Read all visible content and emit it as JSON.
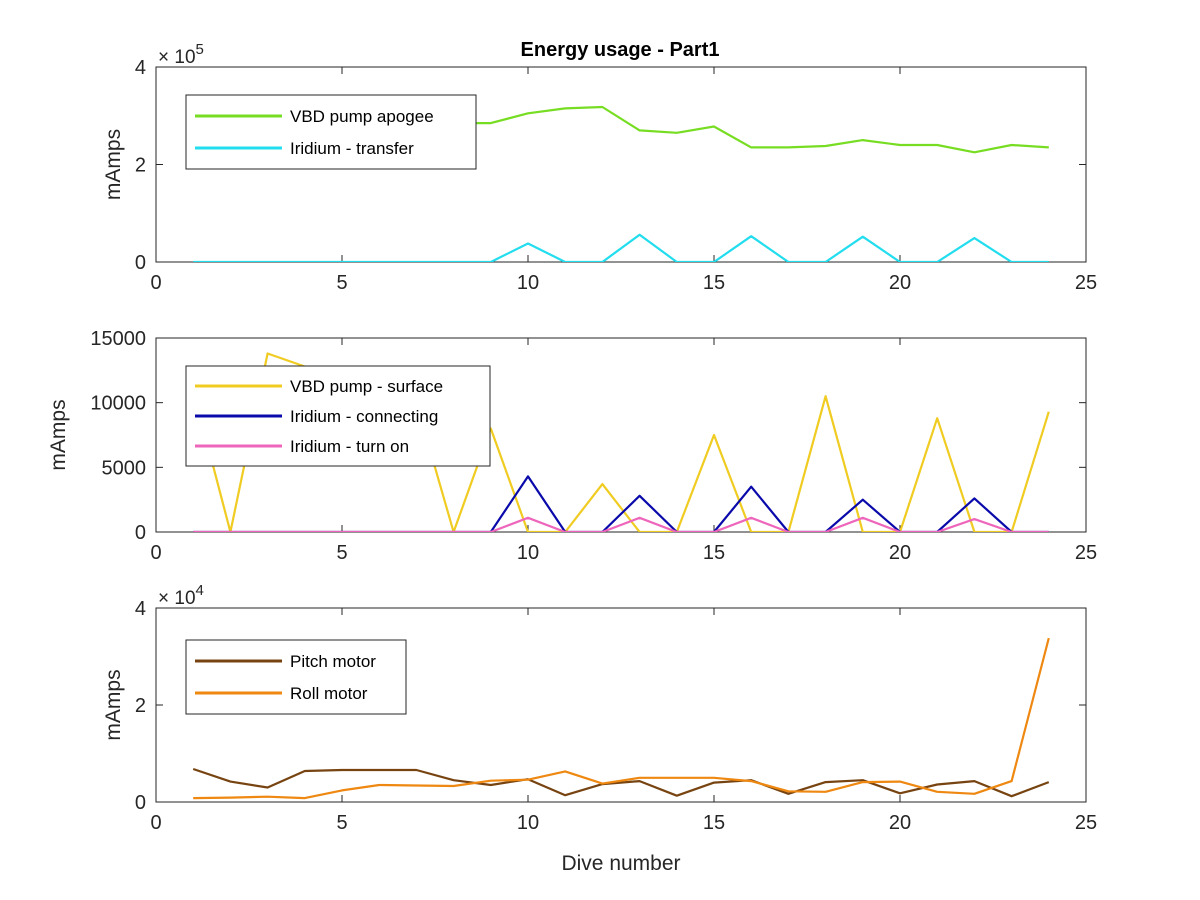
{
  "title": "Energy usage - Part1",
  "chart_data": [
    {
      "type": "line",
      "title": "Energy usage - Part1",
      "xlabel": "",
      "ylabel": "mAmps",
      "xlim": [
        0,
        25
      ],
      "ylim": [
        0,
        400000
      ],
      "xticks": [
        0,
        5,
        10,
        15,
        20,
        25
      ],
      "xtick_labels": [
        "0",
        "5",
        "10",
        "15",
        "20",
        "25"
      ],
      "yticks": [
        0,
        200000,
        400000
      ],
      "ytick_labels": [
        "0",
        "2",
        "4"
      ],
      "y_exponent_base": "× 10",
      "y_exponent_power": "5",
      "legend_position": "top-left",
      "grid": false,
      "series": [
        {
          "name": "VBD pump apogee",
          "color": "#77DD22",
          "x": [
            8,
            9,
            10,
            11,
            12,
            13,
            14,
            15,
            16,
            17,
            18,
            19,
            20,
            21,
            22,
            23,
            24
          ],
          "values": [
            285000,
            285000,
            305000,
            315000,
            318000,
            270000,
            265000,
            278000,
            235000,
            235000,
            238000,
            250000,
            240000,
            240000,
            225000,
            240000,
            235000
          ]
        },
        {
          "name": "Iridium - transfer",
          "color": "#22DDEE",
          "x": [
            1,
            2,
            3,
            4,
            5,
            6,
            7,
            8,
            9,
            10,
            11,
            12,
            13,
            14,
            15,
            16,
            17,
            18,
            19,
            20,
            21,
            22,
            23,
            24
          ],
          "values": [
            0,
            0,
            0,
            0,
            0,
            0,
            0,
            0,
            0,
            38000,
            0,
            0,
            56000,
            0,
            0,
            53000,
            0,
            0,
            52000,
            0,
            0,
            49000,
            0,
            0
          ]
        }
      ]
    },
    {
      "type": "line",
      "title": "",
      "xlabel": "",
      "ylabel": "mAmps",
      "xlim": [
        0,
        25
      ],
      "ylim": [
        0,
        15000
      ],
      "xticks": [
        0,
        5,
        10,
        15,
        20,
        25
      ],
      "xtick_labels": [
        "0",
        "5",
        "10",
        "15",
        "20",
        "25"
      ],
      "yticks": [
        0,
        5000,
        10000,
        15000
      ],
      "ytick_labels": [
        "0",
        "5000",
        "10000",
        "15000"
      ],
      "legend_position": "top-left",
      "grid": false,
      "series": [
        {
          "name": "VBD pump - surface",
          "color": "#F0CC22",
          "x": [
            1,
            2,
            3,
            4,
            5,
            6,
            7,
            8,
            9,
            10,
            11,
            12,
            13,
            14,
            15,
            16,
            17,
            18,
            19,
            20,
            21,
            22,
            23,
            24
          ],
          "values": [
            11000,
            0,
            13800,
            12800,
            12000,
            11000,
            10000,
            0,
            8000,
            0,
            0,
            3700,
            0,
            0,
            7500,
            0,
            0,
            10500,
            0,
            0,
            8800,
            0,
            0,
            9300
          ]
        },
        {
          "name": "Iridium - connecting",
          "color": "#0A0AAA",
          "x": [
            1,
            2,
            3,
            4,
            5,
            6,
            7,
            8,
            9,
            10,
            11,
            12,
            13,
            14,
            15,
            16,
            17,
            18,
            19,
            20,
            21,
            22,
            23,
            24
          ],
          "values": [
            0,
            0,
            0,
            0,
            0,
            0,
            0,
            0,
            0,
            4300,
            0,
            0,
            2800,
            0,
            0,
            3500,
            0,
            0,
            2500,
            0,
            0,
            2600,
            0,
            0
          ]
        },
        {
          "name": "Iridium - turn on",
          "color": "#EE66BB",
          "x": [
            1,
            2,
            3,
            4,
            5,
            6,
            7,
            8,
            9,
            10,
            11,
            12,
            13,
            14,
            15,
            16,
            17,
            18,
            19,
            20,
            21,
            22,
            23,
            24
          ],
          "values": [
            0,
            0,
            0,
            0,
            0,
            0,
            0,
            0,
            0,
            1100,
            0,
            0,
            1100,
            0,
            0,
            1100,
            0,
            0,
            1100,
            0,
            0,
            1000,
            0,
            0
          ]
        }
      ]
    },
    {
      "type": "line",
      "title": "",
      "xlabel": "Dive number",
      "ylabel": "mAmps",
      "xlim": [
        0,
        25
      ],
      "ylim": [
        0,
        40000
      ],
      "xticks": [
        0,
        5,
        10,
        15,
        20,
        25
      ],
      "xtick_labels": [
        "0",
        "5",
        "10",
        "15",
        "20",
        "25"
      ],
      "yticks": [
        0,
        20000,
        40000
      ],
      "ytick_labels": [
        "0",
        "2",
        "4"
      ],
      "y_exponent_base": "× 10",
      "y_exponent_power": "4",
      "legend_position": "top-left",
      "grid": false,
      "series": [
        {
          "name": "Pitch motor",
          "color": "#774411",
          "x": [
            1,
            2,
            3,
            4,
            5,
            6,
            7,
            8,
            9,
            10,
            11,
            12,
            13,
            14,
            15,
            16,
            17,
            18,
            19,
            20,
            21,
            22,
            23,
            24
          ],
          "values": [
            6800,
            4200,
            3000,
            6400,
            6600,
            6600,
            6600,
            4500,
            3500,
            4700,
            1400,
            3700,
            4300,
            1300,
            4000,
            4500,
            1700,
            4100,
            4500,
            1800,
            3600,
            4300,
            1200,
            4100
          ]
        },
        {
          "name": "Roll motor",
          "color": "#EE8811",
          "x": [
            1,
            2,
            3,
            4,
            5,
            6,
            7,
            8,
            9,
            10,
            11,
            12,
            13,
            14,
            15,
            16,
            17,
            18,
            19,
            20,
            21,
            22,
            23,
            24
          ],
          "values": [
            800,
            900,
            1100,
            800,
            2400,
            3500,
            3400,
            3300,
            4400,
            4600,
            6300,
            3800,
            5000,
            5000,
            5000,
            4300,
            2200,
            2100,
            4100,
            4200,
            2100,
            1700,
            4300,
            33800
          ]
        }
      ]
    }
  ]
}
